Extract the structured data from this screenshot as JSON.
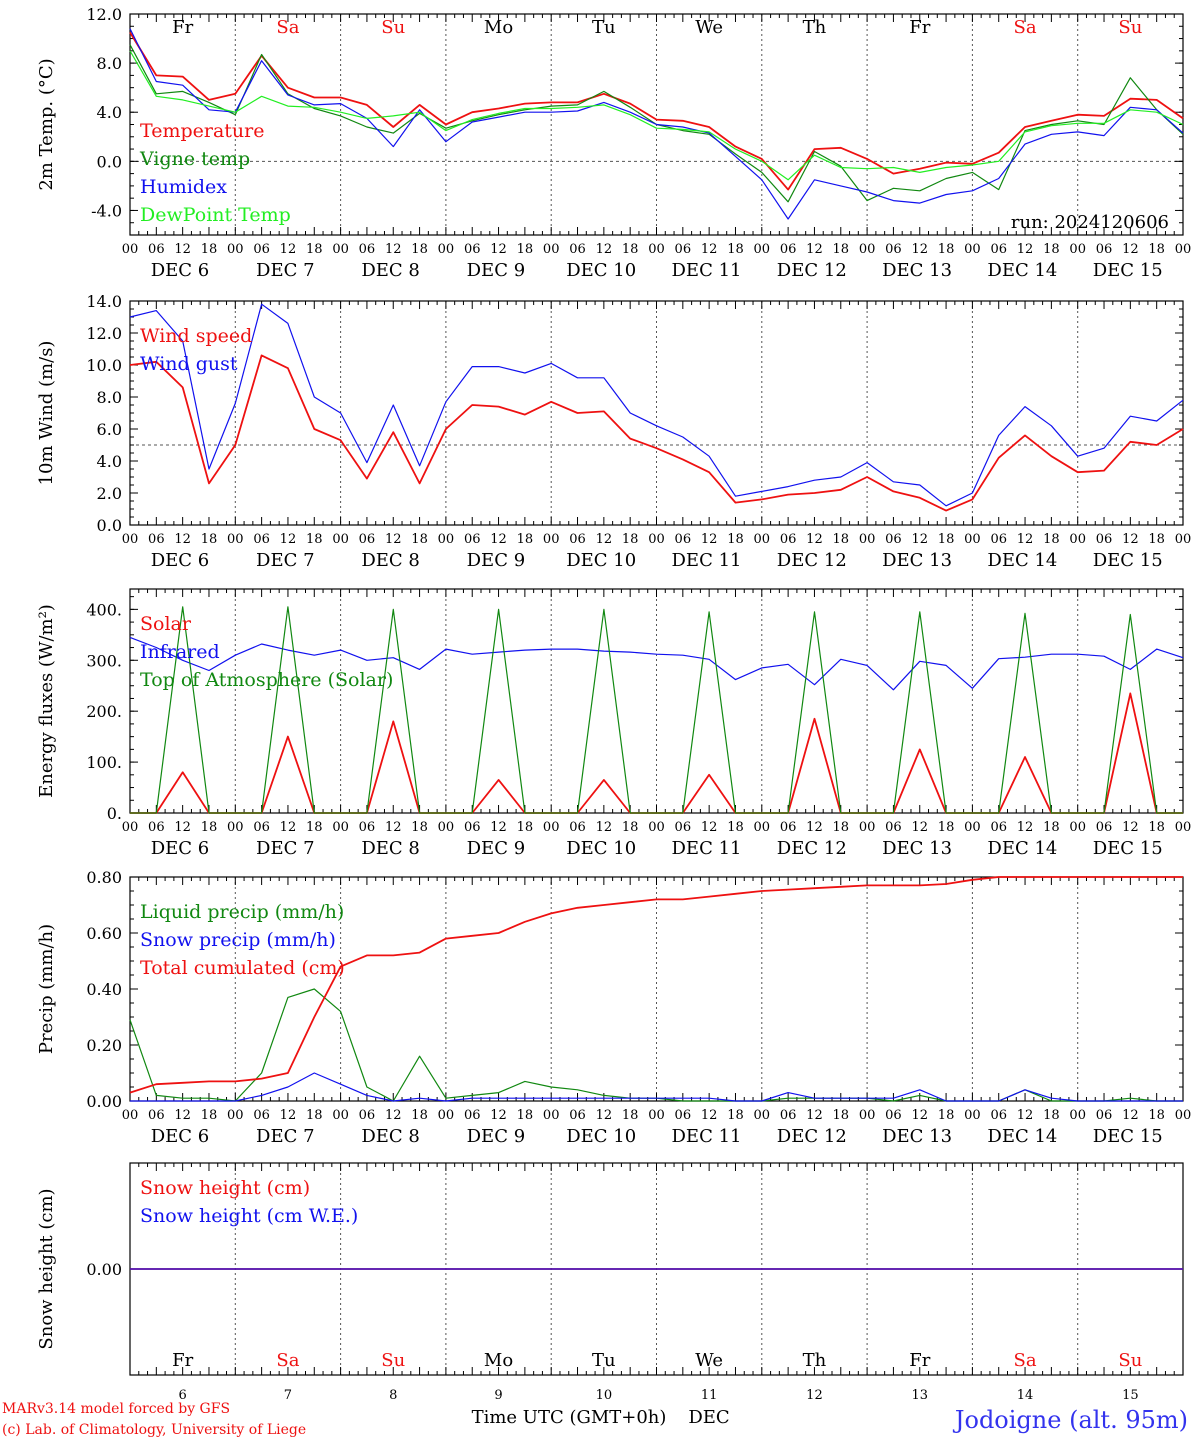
{
  "footer": {
    "credit_line1": "MARv3.14 model forced by GFS",
    "credit_line2": "(c) Lab. of Climatology, University of Liege",
    "x_axis_title": "Time UTC (GMT+0h)",
    "x_axis_unit": "DEC",
    "station": "Jodoigne (alt. 95m)"
  },
  "colors": {
    "red": "#ee1111",
    "green": "#118811",
    "blue": "#1111ee",
    "lightgreen": "#22ee22",
    "axis": "#000000",
    "weekend": "#ee1111",
    "station": "#3333ee"
  },
  "time_axis": {
    "start": "2024-12-06 00 UTC",
    "hour_labels": [
      "00",
      "06",
      "12",
      "18"
    ],
    "date_labels": [
      "DEC  6",
      "DEC  7",
      "DEC  8",
      "DEC  9",
      "DEC 10",
      "DEC 11",
      "DEC 12",
      "DEC 13",
      "DEC 14",
      "DEC 15"
    ],
    "day_numbers": [
      "6",
      "7",
      "8",
      "9",
      "10",
      "11",
      "12",
      "13",
      "14",
      "15"
    ],
    "weekdays": [
      "Fr",
      "Sa",
      "Su",
      "Mo",
      "Tu",
      "We",
      "Th",
      "Fr",
      "Sa",
      "Su"
    ],
    "weekend": [
      false,
      true,
      true,
      false,
      false,
      false,
      false,
      false,
      true,
      true
    ]
  },
  "chart_data": [
    {
      "type": "line",
      "id": "temp",
      "ylabel": "2m Temp. (°C)",
      "ylim": [
        -6,
        12
      ],
      "yticks": [
        -4,
        0,
        4,
        8,
        12
      ],
      "ytick_labels": [
        "-4.0",
        "0.0",
        "4.0",
        "8.0",
        "12.0"
      ],
      "ref_line": 0,
      "annotation": "run: 2024120606",
      "x_hours": [
        0,
        6,
        12,
        18,
        24,
        30,
        36,
        42,
        48,
        54,
        60,
        66,
        72,
        78,
        84,
        90,
        96,
        102,
        108,
        114,
        120,
        126,
        132,
        138,
        144,
        150,
        156,
        162,
        168,
        174,
        180,
        186,
        192,
        198,
        204,
        210,
        216,
        222,
        228,
        234,
        240
      ],
      "series": [
        {
          "name": "Temperature",
          "color": "red",
          "values": [
            10.5,
            7.0,
            6.9,
            5.0,
            5.5,
            8.6,
            6.0,
            5.2,
            5.2,
            4.6,
            2.8,
            4.6,
            3.0,
            4.0,
            4.3,
            4.7,
            4.8,
            4.8,
            5.5,
            4.7,
            3.4,
            3.3,
            2.8,
            1.2,
            0.2,
            -2.3,
            1.0,
            1.1,
            0.2,
            -1.0,
            -0.6,
            -0.1,
            -0.2,
            0.7,
            2.8,
            3.3,
            3.8,
            3.7,
            5.1,
            5.0,
            3.5
          ]
        },
        {
          "name": "Vigne temp",
          "color": "green",
          "values": [
            9.5,
            5.5,
            5.7,
            4.8,
            3.8,
            8.7,
            5.5,
            4.3,
            3.7,
            2.8,
            2.3,
            3.9,
            2.7,
            3.3,
            3.8,
            4.2,
            4.5,
            4.6,
            5.7,
            4.4,
            3.0,
            2.5,
            2.2,
            0.6,
            -0.9,
            -3.3,
            0.8,
            -0.4,
            -3.2,
            -2.2,
            -2.4,
            -1.4,
            -0.9,
            -2.3,
            2.5,
            3.0,
            3.3,
            3.0,
            6.8,
            4.2,
            2.2
          ]
        },
        {
          "name": "Humidex",
          "color": "blue",
          "values": [
            10.8,
            6.5,
            6.2,
            4.2,
            4.0,
            8.2,
            5.4,
            4.6,
            4.7,
            3.5,
            1.2,
            4.2,
            1.6,
            3.2,
            3.6,
            4.0,
            4.0,
            4.1,
            4.8,
            4.0,
            3.0,
            2.8,
            2.3,
            0.4,
            -1.5,
            -4.7,
            -1.5,
            -2.0,
            -2.5,
            -3.2,
            -3.4,
            -2.7,
            -2.4,
            -1.4,
            1.4,
            2.2,
            2.4,
            2.1,
            4.4,
            4.2,
            2.3
          ]
        },
        {
          "name": "DewPoint Temp",
          "color": "lightgreen",
          "values": [
            9.0,
            5.3,
            5.0,
            4.5,
            4.0,
            5.3,
            4.5,
            4.4,
            4.0,
            3.5,
            3.7,
            4.0,
            2.5,
            3.4,
            3.9,
            4.3,
            4.3,
            4.4,
            4.6,
            3.8,
            2.7,
            2.6,
            2.4,
            1.0,
            0.0,
            -1.5,
            0.5,
            -0.5,
            -0.6,
            -0.5,
            -0.9,
            -0.5,
            -0.3,
            0.0,
            2.4,
            2.9,
            3.1,
            3.1,
            4.2,
            4.0,
            3.0
          ]
        }
      ]
    },
    {
      "type": "line",
      "id": "wind",
      "ylabel": "10m Wind (m/s)",
      "ylim": [
        0,
        14
      ],
      "yticks": [
        0,
        2,
        4,
        6,
        8,
        10,
        12,
        14
      ],
      "ytick_labels": [
        "0.0",
        "2.0",
        "4.0",
        "6.0",
        "8.0",
        "10.0",
        "12.0",
        "14.0"
      ],
      "ref_line": 5,
      "x_hours": [
        0,
        6,
        12,
        18,
        24,
        30,
        36,
        42,
        48,
        54,
        60,
        66,
        72,
        78,
        84,
        90,
        96,
        102,
        108,
        114,
        120,
        126,
        132,
        138,
        144,
        150,
        156,
        162,
        168,
        174,
        180,
        186,
        192,
        198,
        204,
        210,
        216,
        222,
        228,
        234,
        240
      ],
      "series": [
        {
          "name": "Wind speed",
          "color": "red",
          "values": [
            10.0,
            10.2,
            8.6,
            2.6,
            5.0,
            10.6,
            9.8,
            6.0,
            5.3,
            2.9,
            5.8,
            2.6,
            6.0,
            7.5,
            7.4,
            6.9,
            7.7,
            7.0,
            7.1,
            5.4,
            4.8,
            4.1,
            3.3,
            1.4,
            1.6,
            1.9,
            2.0,
            2.2,
            3.0,
            2.1,
            1.7,
            0.9,
            1.6,
            4.2,
            5.6,
            4.3,
            3.3,
            3.4,
            5.2,
            5.0,
            6.0
          ]
        },
        {
          "name": "Wind gust",
          "color": "blue",
          "values": [
            13.0,
            13.4,
            11.5,
            3.5,
            7.6,
            13.8,
            12.6,
            8.0,
            7.0,
            3.9,
            7.5,
            3.7,
            7.7,
            9.9,
            9.9,
            9.5,
            10.1,
            9.2,
            9.2,
            7.0,
            6.2,
            5.5,
            4.3,
            1.8,
            2.1,
            2.4,
            2.8,
            3.0,
            3.9,
            2.7,
            2.5,
            1.2,
            2.0,
            5.6,
            7.4,
            6.2,
            4.3,
            4.8,
            6.8,
            6.5,
            7.8
          ]
        }
      ]
    },
    {
      "type": "line",
      "id": "flux",
      "ylabel": "Energy fluxes (W/m²)",
      "ylim": [
        0,
        440
      ],
      "yticks": [
        0,
        100,
        200,
        300,
        400
      ],
      "ytick_labels": [
        "0.",
        "100.",
        "200.",
        "300.",
        "400."
      ],
      "ref_line": null,
      "x_hours": [
        0,
        6,
        12,
        18,
        24,
        30,
        36,
        42,
        48,
        54,
        60,
        66,
        72,
        78,
        84,
        90,
        96,
        102,
        108,
        114,
        120,
        126,
        132,
        138,
        144,
        150,
        156,
        162,
        168,
        174,
        180,
        186,
        192,
        198,
        204,
        210,
        216,
        222,
        228,
        234,
        240
      ],
      "series": [
        {
          "name": "Solar",
          "color": "red",
          "values": [
            0,
            0,
            80,
            0,
            0,
            0,
            150,
            0,
            0,
            0,
            180,
            0,
            0,
            0,
            65,
            0,
            0,
            0,
            65,
            0,
            0,
            0,
            75,
            0,
            0,
            0,
            185,
            0,
            0,
            0,
            125,
            0,
            0,
            0,
            110,
            0,
            0,
            0,
            235,
            0,
            0
          ]
        },
        {
          "name": "Infrared",
          "color": "blue",
          "values": [
            345,
            325,
            300,
            280,
            310,
            332,
            320,
            310,
            320,
            300,
            305,
            282,
            322,
            312,
            316,
            320,
            322,
            322,
            318,
            316,
            312,
            310,
            302,
            262,
            285,
            292,
            252,
            302,
            290,
            242,
            298,
            290,
            245,
            303,
            306,
            312,
            312,
            308,
            282,
            322,
            305
          ]
        },
        {
          "name": "Top of Atmosphere (Solar)",
          "color": "green",
          "values": [
            0,
            0,
            405,
            0,
            0,
            0,
            405,
            0,
            0,
            0,
            400,
            0,
            0,
            0,
            400,
            0,
            0,
            0,
            400,
            0,
            0,
            0,
            395,
            0,
            0,
            0,
            395,
            0,
            0,
            0,
            395,
            0,
            0,
            0,
            392,
            0,
            0,
            0,
            390,
            0,
            0
          ]
        }
      ]
    },
    {
      "type": "line",
      "id": "precip",
      "ylabel": "Precip (mm/h)",
      "ylim": [
        0,
        0.8
      ],
      "yticks": [
        0,
        0.2,
        0.4,
        0.6,
        0.8
      ],
      "ytick_labels": [
        "0.00",
        "0.20",
        "0.40",
        "0.60",
        "0.80"
      ],
      "ref_line": null,
      "x_hours": [
        0,
        6,
        12,
        18,
        24,
        30,
        36,
        42,
        48,
        54,
        60,
        66,
        72,
        78,
        84,
        90,
        96,
        102,
        108,
        114,
        120,
        126,
        132,
        138,
        144,
        150,
        156,
        162,
        168,
        174,
        180,
        186,
        192,
        198,
        204,
        210,
        216,
        222,
        228,
        234,
        240
      ],
      "series": [
        {
          "name": "Liquid precip (mm/h)",
          "color": "green",
          "values": [
            0.29,
            0.02,
            0.01,
            0.01,
            0.0,
            0.1,
            0.37,
            0.4,
            0.32,
            0.05,
            0.0,
            0.16,
            0.01,
            0.02,
            0.03,
            0.07,
            0.05,
            0.04,
            0.02,
            0.01,
            0.01,
            0.0,
            0.0,
            0.0,
            0.0,
            0.01,
            0.01,
            0.01,
            0.01,
            0.0,
            0.02,
            0.0,
            0.0,
            0.0,
            0.04,
            0.0,
            0.0,
            0.0,
            0.01,
            0.0,
            0.0
          ]
        },
        {
          "name": "Snow precip (mm/h)",
          "color": "blue",
          "values": [
            0.0,
            0.0,
            0.0,
            0.0,
            0.0,
            0.02,
            0.05,
            0.1,
            0.06,
            0.02,
            0.0,
            0.01,
            0.0,
            0.01,
            0.01,
            0.01,
            0.01,
            0.01,
            0.01,
            0.01,
            0.01,
            0.01,
            0.01,
            0.0,
            0.0,
            0.03,
            0.01,
            0.01,
            0.01,
            0.01,
            0.04,
            0.0,
            0.0,
            0.0,
            0.04,
            0.01,
            0.0,
            0.0,
            0.0,
            0.0,
            0.0
          ]
        },
        {
          "name": "Total cumulated (cm)",
          "color": "red",
          "values": [
            0.03,
            0.06,
            0.065,
            0.07,
            0.07,
            0.08,
            0.1,
            0.3,
            0.48,
            0.52,
            0.52,
            0.53,
            0.58,
            0.59,
            0.6,
            0.64,
            0.67,
            0.69,
            0.7,
            0.71,
            0.72,
            0.72,
            0.73,
            0.74,
            0.75,
            0.755,
            0.76,
            0.765,
            0.77,
            0.77,
            0.77,
            0.775,
            0.79,
            0.8,
            0.8,
            0.8,
            0.8,
            0.8,
            0.8,
            0.8,
            0.8
          ]
        }
      ]
    },
    {
      "type": "line",
      "id": "snow",
      "ylabel": "Snow height (cm)",
      "ylim": [
        -1,
        1
      ],
      "yticks": [
        0
      ],
      "ytick_labels": [
        "0.00"
      ],
      "ref_line": null,
      "x_hours": [
        0,
        240
      ],
      "series": [
        {
          "name": "Snow height (cm)",
          "color": "red",
          "values": [
            0,
            0
          ]
        },
        {
          "name": "Snow height (cm W.E.)",
          "color": "blue",
          "values": [
            0,
            0
          ]
        }
      ]
    }
  ]
}
